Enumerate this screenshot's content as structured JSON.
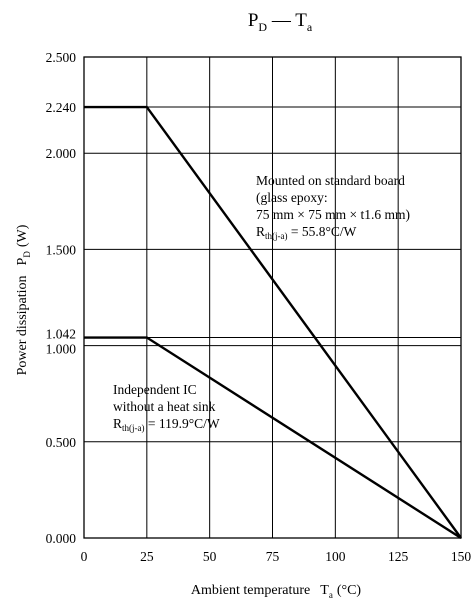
{
  "chart_data": {
    "type": "line",
    "title": {
      "main": "P",
      "main_sub": "D",
      "dash": " — ",
      "second": "T",
      "second_sub": "a"
    },
    "xlabel": {
      "text": "Ambient temperature",
      "sym": "T",
      "sym_sub": "a",
      "unit": "(°C)"
    },
    "ylabel": {
      "text": "Power dissipation",
      "sym": "P",
      "sym_sub": "D",
      "unit": "(W)"
    },
    "xlim": [
      0,
      150
    ],
    "ylim": [
      0,
      2.5
    ],
    "x_ticks": [
      0,
      25,
      50,
      75,
      100,
      125,
      150
    ],
    "x_tick_labels": [
      "0",
      "25",
      "50",
      "75",
      "100",
      "125",
      "150"
    ],
    "y_ticks": [
      0,
      0.5,
      1.0,
      1.042,
      1.5,
      2.0,
      2.24,
      2.5
    ],
    "y_tick_labels": [
      "0.000",
      "0.500",
      "1.000",
      "1.042",
      "1.500",
      "2.000",
      "2.240",
      "2.500"
    ],
    "grid": true,
    "series": [
      {
        "x": [
          0,
          25,
          150
        ],
        "y": [
          2.24,
          2.24,
          0
        ]
      },
      {
        "x": [
          0,
          25,
          150
        ],
        "y": [
          1.042,
          1.042,
          0
        ]
      }
    ],
    "annotations": [
      {
        "lines": [
          "Mounted on standard board",
          "(glass epoxy:",
          " 75 mm × 75 mm × t1.6 mm)"
        ],
        "r_sym": "R",
        "r_sub": "th(j-a)",
        "r_value": " = 55.8°C/W"
      },
      {
        "lines": [
          "Independent IC",
          "without a heat sink"
        ],
        "r_sym": "R",
        "r_sub": "th(j-a)",
        "r_value": " = 119.9°C/W"
      }
    ]
  }
}
